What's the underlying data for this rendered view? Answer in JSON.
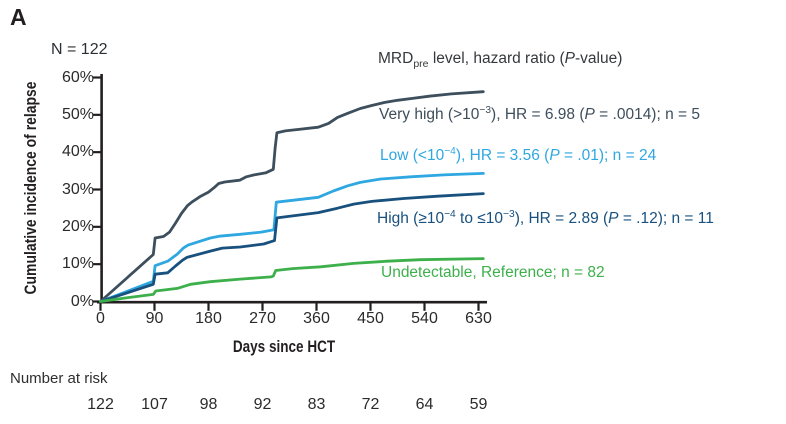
{
  "panel_label": "A",
  "n_label": "N = 122",
  "colors": {
    "very_high": "#3d4e5c",
    "low": "#2fa7e0",
    "high": "#18507e",
    "undetectable": "#3db04b",
    "axis": "#231f20",
    "tick_text": "#2b2b2b",
    "legend_header_text": "#35393c"
  },
  "legend": {
    "header": {
      "a": "MRD",
      "sub": "pre",
      "b": " level, hazard ratio (",
      "p": "P",
      "c": "-value)"
    },
    "items": [
      {
        "id": "very-high",
        "color": "#3d4e5c",
        "a": "Very high (>10",
        "s1": "−3",
        "b": "",
        "s2": "",
        "c": "), HR = 6.98 (",
        "p": "P",
        "d": " = .0014); n = 5"
      },
      {
        "id": "low",
        "color": "#2fa7e0",
        "a": "Low (<10",
        "s1": "−4",
        "b": "",
        "s2": "",
        "c": "), HR = 3.56 (",
        "p": "P",
        "d": " = .01); n = 24"
      },
      {
        "id": "high",
        "color": "#18507e",
        "a": "High (≥10",
        "s1": "−4",
        "b": " to ≤10",
        "s2": "−3",
        "c": "), HR = 2.89 (",
        "p": "P",
        "d": " = .12); n = 11"
      },
      {
        "id": "undetectable",
        "color": "#3db04b",
        "a": "Undetectable, Reference; n = 82",
        "s1": "",
        "b": "",
        "s2": "",
        "c": "",
        "p": "",
        "d": ""
      }
    ]
  },
  "chart_data": {
    "type": "line",
    "title": "",
    "xlabel": "Days since HCT",
    "ylabel": "Cumulative incidence of relapse",
    "xlim": [
      0,
      630
    ],
    "ylim": [
      0,
      60
    ],
    "grid": false,
    "legend_position": "right-of-curves",
    "x_ticks": [
      0,
      90,
      180,
      270,
      360,
      450,
      540,
      630
    ],
    "y_ticks": [
      {
        "v": 0,
        "label": "0%"
      },
      {
        "v": 10,
        "label": "10%"
      },
      {
        "v": 20,
        "label": "20%"
      },
      {
        "v": 30,
        "label": "30%"
      },
      {
        "v": 40,
        "label": "40%"
      },
      {
        "v": 50,
        "label": "50%"
      },
      {
        "v": 60,
        "label": "60%"
      }
    ],
    "series": [
      {
        "name": "Very high (>10⁻³)",
        "hazard_ratio": 6.98,
        "p_value": ".0014",
        "n": 5,
        "color": "#3d4e5c",
        "points": [
          [
            0,
            0
          ],
          [
            44,
            6.3
          ],
          [
            88,
            12.6
          ],
          [
            91,
            17
          ],
          [
            105,
            17.4
          ],
          [
            115,
            18.6
          ],
          [
            125,
            21
          ],
          [
            135,
            23.6
          ],
          [
            145,
            25.7
          ],
          [
            152,
            26.6
          ],
          [
            167,
            28.2
          ],
          [
            180,
            29.3
          ],
          [
            190,
            30.6
          ],
          [
            197,
            31.6
          ],
          [
            207,
            32
          ],
          [
            232,
            32.5
          ],
          [
            243,
            33.4
          ],
          [
            256,
            33.9
          ],
          [
            276,
            34.5
          ],
          [
            288,
            35.4
          ],
          [
            291,
            41
          ],
          [
            294,
            45.2
          ],
          [
            308,
            45.7
          ],
          [
            363,
            46.7
          ],
          [
            380,
            47.7
          ],
          [
            395,
            49.3
          ],
          [
            412,
            50.4
          ],
          [
            433,
            51.7
          ],
          [
            452,
            52.5
          ],
          [
            473,
            53.3
          ],
          [
            495,
            53.9
          ],
          [
            520,
            54.4
          ],
          [
            548,
            55
          ],
          [
            585,
            55.6
          ],
          [
            638,
            56.2
          ]
        ]
      },
      {
        "name": "Low (<10⁻⁴)",
        "hazard_ratio": 3.56,
        "p_value": ".01",
        "n": 24,
        "color": "#2fa7e0",
        "points": [
          [
            0,
            0
          ],
          [
            44,
            2.7
          ],
          [
            88,
            5.4
          ],
          [
            91,
            9.6
          ],
          [
            112,
            10.8
          ],
          [
            128,
            12.7
          ],
          [
            138,
            14.3
          ],
          [
            146,
            15.1
          ],
          [
            183,
            17
          ],
          [
            198,
            17.5
          ],
          [
            233,
            18
          ],
          [
            268,
            18.6
          ],
          [
            289,
            19.2
          ],
          [
            293,
            26.6
          ],
          [
            363,
            27.9
          ],
          [
            388,
            29.6
          ],
          [
            412,
            31
          ],
          [
            433,
            31.9
          ],
          [
            467,
            32.8
          ],
          [
            517,
            33.4
          ],
          [
            572,
            33.9
          ],
          [
            638,
            34.3
          ]
        ]
      },
      {
        "name": "High (≥10⁻⁴ to ≤10⁻³)",
        "hazard_ratio": 2.89,
        "p_value": ".12",
        "n": 11,
        "color": "#18507e",
        "points": [
          [
            0,
            0
          ],
          [
            44,
            2.3
          ],
          [
            88,
            4.6
          ],
          [
            91,
            7.3
          ],
          [
            112,
            7.7
          ],
          [
            125,
            9.5
          ],
          [
            137,
            11.1
          ],
          [
            144,
            11.8
          ],
          [
            183,
            13.5
          ],
          [
            203,
            14.3
          ],
          [
            233,
            14.6
          ],
          [
            272,
            15.4
          ],
          [
            290,
            16.3
          ],
          [
            294,
            22.4
          ],
          [
            363,
            23.8
          ],
          [
            395,
            25
          ],
          [
            422,
            26.1
          ],
          [
            452,
            26.8
          ],
          [
            505,
            27.6
          ],
          [
            562,
            28.2
          ],
          [
            638,
            28.9
          ]
        ]
      },
      {
        "name": "Undetectable",
        "hazard_ratio": null,
        "p_value": "Reference",
        "n": 82,
        "color": "#3db04b",
        "points": [
          [
            0,
            0
          ],
          [
            44,
            1
          ],
          [
            88,
            1.9
          ],
          [
            92,
            2.8
          ],
          [
            128,
            3.5
          ],
          [
            150,
            4.6
          ],
          [
            183,
            5.3
          ],
          [
            233,
            6
          ],
          [
            284,
            6.6
          ],
          [
            288,
            6.8
          ],
          [
            292,
            8.3
          ],
          [
            320,
            8.8
          ],
          [
            367,
            9.3
          ],
          [
            422,
            10.2
          ],
          [
            478,
            10.8
          ],
          [
            533,
            11.2
          ],
          [
            638,
            11.5
          ]
        ]
      }
    ]
  },
  "number_at_risk": {
    "label": "Number at risk",
    "values": [
      122,
      107,
      98,
      92,
      83,
      72,
      64,
      59
    ]
  }
}
